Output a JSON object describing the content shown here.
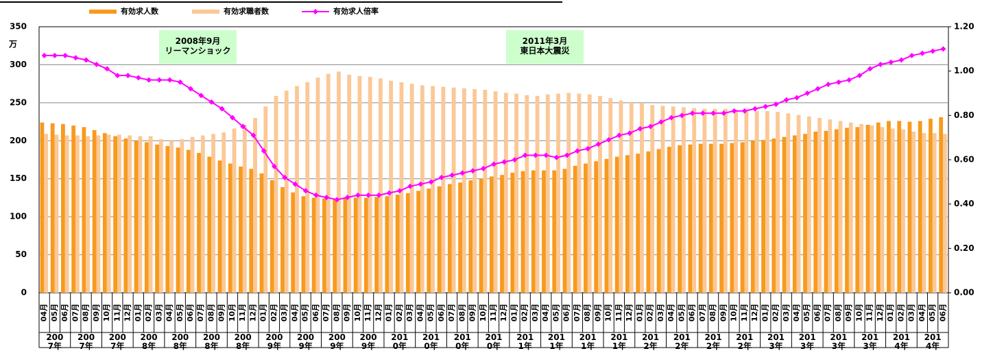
{
  "chart_data": {
    "type": "bar_line",
    "y_unit": "万",
    "categories": [
      "04月",
      "05月",
      "06月",
      "07月",
      "08月",
      "09月",
      "10月",
      "11月",
      "12月",
      "01月",
      "02月",
      "03月",
      "04月",
      "05月",
      "06月",
      "07月",
      "08月",
      "09月",
      "10月",
      "11月",
      "12月",
      "01月",
      "02月",
      "03月",
      "04月",
      "05月",
      "06月",
      "07月",
      "08月",
      "09月",
      "10月",
      "11月",
      "12月",
      "01月",
      "02月",
      "03月",
      "04月",
      "05月",
      "06月",
      "07月",
      "08月",
      "09月",
      "10月",
      "11月",
      "12月",
      "01月",
      "02月",
      "03月",
      "04月",
      "05月",
      "06月",
      "07月",
      "08月",
      "09月",
      "10月",
      "11月",
      "12月",
      "01月",
      "02月",
      "03月",
      "04月",
      "05月",
      "06月",
      "07月",
      "08月",
      "09月",
      "10月",
      "11月",
      "12月",
      "01月",
      "02月",
      "03月",
      "04月",
      "05月",
      "06月",
      "07月",
      "08月",
      "09月",
      "10月",
      "11月",
      "12月",
      "01月",
      "02月",
      "03月",
      "04月",
      "05月",
      "06月"
    ],
    "year_groups": [
      "2007年",
      "2007年",
      "2007年",
      "2008年",
      "2008年",
      "2008年",
      "2008年",
      "2009年",
      "2009年",
      "2009年",
      "2009年",
      "2010年",
      "2010年",
      "2010年",
      "2010年",
      "2011年",
      "2011年",
      "2011年",
      "2011年",
      "2012年",
      "2012年",
      "2012年",
      "2012年",
      "2013年",
      "2013年",
      "2013年",
      "2013年",
      "2014年",
      "2014年"
    ],
    "series": [
      {
        "name": "有効求人数",
        "color": "#f79a1e",
        "kind": "bar",
        "values": [
          224,
          223,
          222,
          220,
          218,
          214,
          210,
          206,
          203,
          200,
          198,
          195,
          193,
          191,
          188,
          184,
          179,
          174,
          170,
          166,
          163,
          157,
          148,
          139,
          132,
          127,
          125,
          124,
          124,
          124,
          125,
          125,
          126,
          127,
          129,
          131,
          134,
          137,
          140,
          143,
          145,
          148,
          150,
          153,
          155,
          158,
          160,
          161,
          161,
          161,
          163,
          167,
          170,
          173,
          176,
          179,
          181,
          183,
          186,
          189,
          192,
          194,
          195,
          196,
          196,
          196,
          197,
          198,
          200,
          201,
          203,
          205,
          207,
          209,
          212,
          213,
          215,
          217,
          218,
          221,
          224,
          226,
          226,
          225,
          226,
          229,
          231
        ]
      },
      {
        "name": "有効求職者数",
        "color": "#fbc896",
        "kind": "bar",
        "values": [
          209,
          208,
          207,
          207,
          206,
          207,
          208,
          208,
          207,
          206,
          206,
          202,
          200,
          202,
          205,
          207,
          209,
          211,
          216,
          221,
          230,
          245,
          259,
          266,
          272,
          277,
          283,
          288,
          291,
          287,
          285,
          284,
          282,
          279,
          277,
          275,
          273,
          272,
          271,
          270,
          269,
          268,
          267,
          265,
          263,
          262,
          260,
          259,
          261,
          262,
          263,
          262,
          261,
          259,
          256,
          253,
          250,
          249,
          247,
          246,
          245,
          244,
          243,
          242,
          242,
          242,
          241,
          240,
          239,
          239,
          238,
          236,
          234,
          232,
          230,
          228,
          226,
          224,
          222,
          220,
          218,
          216,
          215,
          212,
          210,
          210,
          209
        ]
      },
      {
        "name": "有効求人倍率",
        "color": "#ff00ff",
        "kind": "line",
        "axis": "y2",
        "values": [
          1.07,
          1.07,
          1.07,
          1.06,
          1.05,
          1.03,
          1.01,
          0.98,
          0.98,
          0.97,
          0.96,
          0.96,
          0.96,
          0.95,
          0.92,
          0.89,
          0.86,
          0.83,
          0.79,
          0.75,
          0.71,
          0.64,
          0.57,
          0.52,
          0.49,
          0.46,
          0.44,
          0.43,
          0.42,
          0.43,
          0.44,
          0.44,
          0.44,
          0.45,
          0.46,
          0.48,
          0.49,
          0.5,
          0.52,
          0.53,
          0.54,
          0.55,
          0.56,
          0.58,
          0.59,
          0.6,
          0.62,
          0.62,
          0.62,
          0.61,
          0.62,
          0.64,
          0.65,
          0.67,
          0.69,
          0.71,
          0.72,
          0.74,
          0.75,
          0.77,
          0.79,
          0.8,
          0.81,
          0.81,
          0.81,
          0.81,
          0.82,
          0.82,
          0.83,
          0.84,
          0.85,
          0.87,
          0.88,
          0.9,
          0.92,
          0.94,
          0.95,
          0.96,
          0.98,
          1.01,
          1.03,
          1.04,
          1.05,
          1.07,
          1.08,
          1.09,
          1.1
        ]
      }
    ],
    "ylim": [
      0,
      350
    ],
    "yticks": [
      0,
      50,
      100,
      150,
      200,
      250,
      300,
      350
    ],
    "y2lim": [
      0,
      1.2
    ],
    "y2ticks": [
      {
        "value": 0,
        "label": "0.00"
      },
      {
        "value": 0.2,
        "label": "0.20"
      },
      {
        "value": 0.4,
        "label": "0.40"
      },
      {
        "value": 0.6,
        "label": "0.60"
      },
      {
        "value": 0.8,
        "label": "0.80"
      },
      {
        "value": 1.0,
        "label": "1.00"
      },
      {
        "value": 1.2,
        "label": "1.20"
      }
    ],
    "grid": true,
    "annotations": [
      {
        "lines": [
          "2008年9月",
          "リーマンショック"
        ]
      },
      {
        "lines": [
          "2011年3月",
          "東日本大震災"
        ]
      }
    ]
  }
}
